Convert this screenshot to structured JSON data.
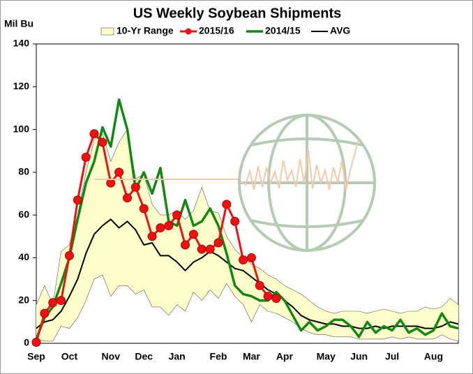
{
  "chart_data": {
    "type": "line",
    "title": "US Weekly Soybean Shipments",
    "y_label": "Mil Bu",
    "categories": [
      "Sep",
      null,
      null,
      null,
      "Oct",
      null,
      null,
      null,
      null,
      "Nov",
      null,
      null,
      null,
      "Dec",
      null,
      null,
      null,
      "Jan",
      null,
      null,
      null,
      null,
      "Feb",
      null,
      null,
      null,
      "Mar",
      null,
      null,
      null,
      "Apr",
      null,
      null,
      null,
      null,
      "May",
      null,
      null,
      null,
      "Jun",
      null,
      null,
      null,
      "Jul",
      null,
      null,
      null,
      null,
      "Aug",
      null,
      null,
      null
    ],
    "ylim": [
      0,
      140
    ],
    "yticks": [
      0,
      20,
      40,
      60,
      80,
      100,
      120,
      140
    ],
    "series": [
      {
        "name": "10-Yr Range",
        "color": "#ffffcc",
        "high": [
          18,
          27,
          18,
          43,
          46,
          60,
          80,
          95,
          98,
          85,
          94,
          100,
          77,
          79,
          65,
          60,
          60,
          62,
          58,
          62,
          73,
          62,
          61,
          50,
          44,
          40,
          37,
          35,
          32,
          30,
          27,
          25,
          23,
          20,
          17,
          15,
          14,
          15,
          15,
          15,
          14,
          15,
          16,
          15,
          14,
          15,
          15,
          17,
          16,
          17,
          21,
          18
        ],
        "low": [
          2,
          1,
          1,
          8,
          7,
          12,
          20,
          30,
          32,
          22,
          27,
          27,
          23,
          25,
          17,
          17,
          13,
          18,
          15,
          24,
          20,
          25,
          21,
          28,
          22,
          18,
          10,
          18,
          15,
          14,
          12,
          10,
          7,
          5,
          4,
          4,
          3,
          3,
          3,
          2,
          2,
          2,
          2,
          3,
          2,
          3,
          2,
          2,
          2,
          4,
          2,
          1
        ]
      },
      {
        "name": "2015/16",
        "color": "#ee1111",
        "values": [
          0.5,
          14,
          19,
          20,
          41,
          67,
          87,
          98,
          94,
          75,
          80,
          68,
          73,
          63,
          50,
          54,
          55,
          60,
          46,
          51,
          44,
          44,
          47,
          65,
          57,
          39,
          40,
          27,
          22,
          21,
          null,
          null,
          null,
          null,
          null,
          null,
          null,
          null,
          null,
          null,
          null,
          null,
          null,
          null,
          null,
          null,
          null,
          null,
          null,
          null,
          null,
          null
        ]
      },
      {
        "name": "2014/15",
        "color": "#118811",
        "values": [
          2,
          12,
          17,
          28,
          40,
          58,
          75,
          85,
          101,
          92,
          114,
          100,
          72,
          80,
          70,
          82,
          57,
          55,
          67,
          55,
          57,
          63,
          55,
          42,
          27,
          23,
          22,
          20,
          20,
          24,
          20,
          13,
          6,
          10,
          6,
          8,
          11,
          11,
          8,
          3,
          10,
          5,
          8,
          6,
          11,
          5,
          7,
          4,
          6,
          14,
          8,
          7
        ]
      },
      {
        "name": "AVG",
        "color": "#000000",
        "values": [
          7,
          10,
          11,
          15,
          22,
          30,
          42,
          51,
          55,
          58,
          54,
          57,
          53,
          46,
          47,
          41,
          41,
          38,
          34,
          38,
          40,
          43,
          41,
          38,
          35,
          34,
          31,
          28,
          25,
          23,
          20,
          17,
          13,
          11,
          10,
          9,
          9,
          8,
          8,
          7,
          7,
          8,
          7,
          8,
          8,
          8,
          8,
          7,
          7,
          8,
          10,
          9
        ]
      }
    ]
  }
}
